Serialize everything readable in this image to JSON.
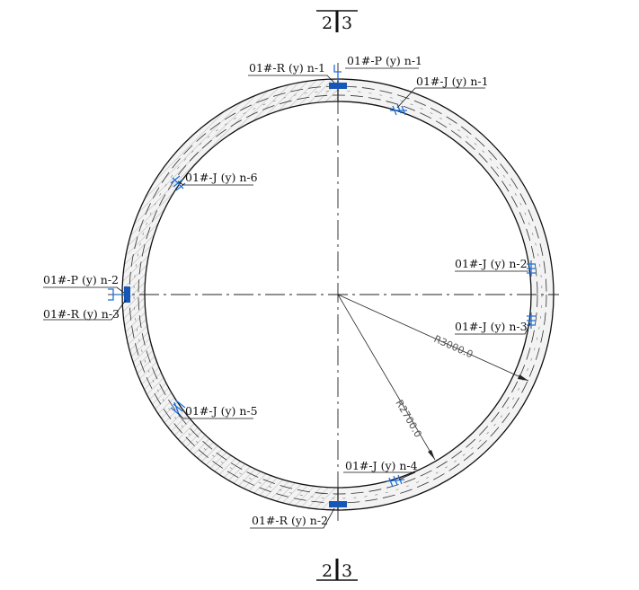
{
  "section_marks": {
    "top": {
      "left": "2",
      "right": "3"
    },
    "bottom": {
      "left": "2",
      "right": "3"
    }
  },
  "labels": {
    "r_n1": "01#-R (y) n-1",
    "p_n1": "01#-P (y) n-1",
    "j_n1": "01#-J (y) n-1",
    "j_n6": "01#-J (y) n-6",
    "j_n2": "01#-J (y) n-2",
    "p_n2": "01#-P (y) n-2",
    "r_n3": "01#-R (y) n-3",
    "j_n3": "01#-J (y) n-3",
    "j_n5": "01#-J (y) n-5",
    "j_n4": "01#-J (y) n-4",
    "r_n2": "01#-R (y) n-2"
  },
  "dimensions": {
    "outer_radius": "R3000.0",
    "inner_radius": "R2700.0"
  },
  "colors": {
    "annotation_blue": "#1f6fd6",
    "line": "#111111",
    "hatch": "#9a9a9a"
  }
}
